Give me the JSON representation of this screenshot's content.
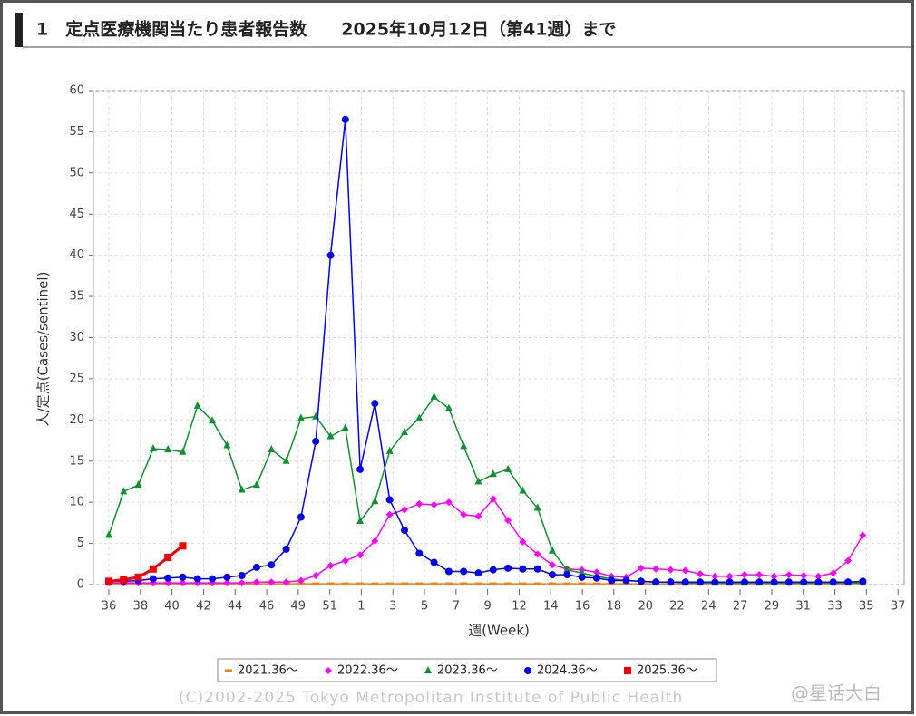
{
  "header": {
    "title": "1　定点医療機関当たり患者報告数　　2025年10月12日（第41週）まで"
  },
  "chart_data": {
    "type": "line",
    "xlabel": "週(Week)",
    "ylabel": "人/定点(Cases/sentinel)",
    "x": [
      0,
      1,
      2,
      3,
      4,
      5,
      6,
      7,
      8,
      9,
      10,
      11,
      12,
      13,
      14,
      15,
      16,
      17,
      18,
      19,
      20,
      21,
      22,
      23,
      24,
      25,
      26,
      27,
      28,
      29,
      30,
      31,
      32,
      33,
      34,
      35,
      36,
      37,
      38,
      39,
      40,
      41,
      42,
      43,
      44,
      45,
      46,
      47,
      48,
      49,
      50,
      51
    ],
    "xlim": [
      -1.04,
      53.8
    ],
    "xticks": [
      {
        "value": 0,
        "label": "36"
      },
      {
        "value": 2.14,
        "label": "38"
      },
      {
        "value": 4.27,
        "label": "40"
      },
      {
        "value": 6.41,
        "label": "42"
      },
      {
        "value": 8.54,
        "label": "44"
      },
      {
        "value": 10.68,
        "label": "46"
      },
      {
        "value": 12.81,
        "label": "49"
      },
      {
        "value": 14.95,
        "label": "51"
      },
      {
        "value": 17.08,
        "label": "1"
      },
      {
        "value": 19.22,
        "label": "3"
      },
      {
        "value": 21.35,
        "label": "5"
      },
      {
        "value": 23.49,
        "label": "7"
      },
      {
        "value": 25.62,
        "label": "9"
      },
      {
        "value": 27.76,
        "label": "12"
      },
      {
        "value": 29.89,
        "label": "14"
      },
      {
        "value": 32.03,
        "label": "16"
      },
      {
        "value": 34.16,
        "label": "18"
      },
      {
        "value": 36.3,
        "label": "20"
      },
      {
        "value": 38.43,
        "label": "22"
      },
      {
        "value": 40.57,
        "label": "24"
      },
      {
        "value": 42.7,
        "label": "27"
      },
      {
        "value": 44.84,
        "label": "29"
      },
      {
        "value": 46.97,
        "label": "31"
      },
      {
        "value": 49.11,
        "label": "33"
      },
      {
        "value": 51.24,
        "label": "35"
      },
      {
        "value": 53.38,
        "label": "37"
      }
    ],
    "ylim": [
      0,
      60
    ],
    "yticks": [
      0,
      5,
      10,
      15,
      20,
      25,
      30,
      35,
      40,
      45,
      50,
      55,
      60
    ],
    "grid": true,
    "series": [
      {
        "name": "2021.36〜",
        "color": "#ff8000",
        "marker": "dash",
        "values": [
          0.1,
          0.1,
          0.1,
          0.1,
          0.1,
          0.1,
          0.1,
          0.1,
          0.1,
          0.1,
          0.1,
          0.1,
          0.1,
          0.1,
          0.1,
          0.1,
          0.1,
          0.1,
          0.1,
          0.1,
          0.1,
          0.1,
          0.1,
          0.1,
          0.1,
          0.1,
          0.1,
          0.1,
          0.1,
          0.1,
          0.1,
          0.1,
          0.1,
          0.1,
          0.1,
          0.1,
          0.1,
          0.1,
          0.1,
          0.1,
          0.1,
          0.1,
          0.1,
          0.1,
          0.1,
          0.1,
          0.1,
          0.1,
          0.1,
          0.1,
          0.1,
          0.1
        ]
      },
      {
        "name": "2022.36〜",
        "color": "#ff00ff",
        "marker": "diamond",
        "values": [
          0.2,
          0.2,
          0.2,
          0.2,
          0.2,
          0.2,
          0.2,
          0.2,
          0.2,
          0.2,
          0.3,
          0.3,
          0.3,
          0.5,
          1.1,
          2.3,
          2.9,
          3.6,
          5.3,
          8.5,
          9.1,
          9.8,
          9.7,
          10.0,
          8.5,
          8.3,
          10.4,
          7.8,
          5.2,
          3.7,
          2.4,
          1.9,
          1.8,
          1.5,
          1.0,
          0.9,
          2.0,
          1.9,
          1.8,
          1.7,
          1.3,
          1.0,
          1.0,
          1.2,
          1.2,
          1.0,
          1.2,
          1.1,
          1.0,
          1.4,
          2.9,
          6.0
        ]
      },
      {
        "name": "2023.36〜",
        "color": "#109030",
        "marker": "triangle",
        "values": [
          6.0,
          11.3,
          12.1,
          16.5,
          16.4,
          16.1,
          21.7,
          19.9,
          16.9,
          11.5,
          12.1,
          16.4,
          15.0,
          20.2,
          20.4,
          18.0,
          19.0,
          7.7,
          10.1,
          16.2,
          18.5,
          20.2,
          22.8,
          21.4,
          16.8,
          12.5,
          13.4,
          14.0,
          11.4,
          9.3,
          4.1,
          1.8,
          1.4,
          1.0,
          0.7,
          0.5,
          0.4,
          0.3,
          0.3,
          0.2,
          0.2,
          0.2,
          0.2,
          0.2,
          0.2,
          0.2,
          0.2,
          0.2,
          0.2,
          0.2,
          0.2,
          0.2
        ]
      },
      {
        "name": "2024.36〜",
        "color": "#0000ee",
        "marker": "circle",
        "values": [
          0.4,
          0.4,
          0.5,
          0.7,
          0.8,
          0.9,
          0.7,
          0.7,
          0.9,
          1.1,
          2.1,
          2.4,
          4.3,
          8.2,
          17.4,
          40.0,
          56.5,
          14.0,
          22.0,
          10.3,
          6.6,
          3.8,
          2.7,
          1.6,
          1.6,
          1.4,
          1.8,
          2.0,
          1.9,
          1.9,
          1.2,
          1.2,
          0.9,
          0.8,
          0.5,
          0.5,
          0.4,
          0.3,
          0.3,
          0.3,
          0.3,
          0.3,
          0.3,
          0.3,
          0.3,
          0.3,
          0.3,
          0.3,
          0.3,
          0.3,
          0.3,
          0.4
        ]
      },
      {
        "name": "2025.36〜",
        "color": "#ee0000",
        "marker": "square",
        "values": [
          0.4,
          0.6,
          0.9,
          1.9,
          3.3,
          4.7,
          null,
          null,
          null,
          null,
          null,
          null,
          null,
          null,
          null,
          null,
          null,
          null,
          null,
          null,
          null,
          null,
          null,
          null,
          null,
          null,
          null,
          null,
          null,
          null,
          null,
          null,
          null,
          null,
          null,
          null,
          null,
          null,
          null,
          null,
          null,
          null,
          null,
          null,
          null,
          null,
          null,
          null,
          null,
          null,
          null,
          null
        ]
      }
    ]
  },
  "footer": {
    "copyright": "(C)2002-2025 Tokyo Metropolitan Institute of Public Health",
    "watermark": "@星话大白"
  }
}
